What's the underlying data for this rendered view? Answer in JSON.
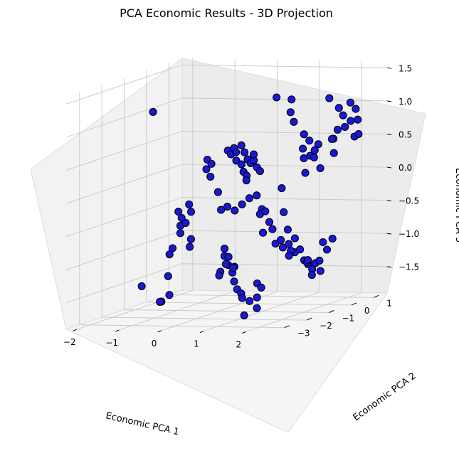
{
  "chart_data": {
    "type": "scatter3d",
    "title": "PCA Economic Results - 3D Projection",
    "xlabel": "Economic PCA 1",
    "ylabel": "Economic PCA 2",
    "zlabel": "Economic PCA 3",
    "xticks": [
      "−2",
      "−1",
      "0",
      "1",
      "2"
    ],
    "yticks": [
      "−3",
      "−2",
      "−1",
      "0",
      "1"
    ],
    "zticks": [
      "−1.5",
      "−1.0",
      "−0.5",
      "0.0",
      "0.5",
      "1.0",
      "1.5"
    ],
    "xlim": [
      -2.25,
      2.6
    ],
    "ylim": [
      -3.6,
      1.6
    ],
    "zlim": [
      -1.9,
      1.6
    ],
    "grid": true,
    "marker_color": "#1a18d8",
    "marker_edge_color": "#000010",
    "points": [
      [
        -2.2,
        0.2,
        0.95
      ],
      [
        -2.1,
        -0.5,
        -1.6
      ],
      [
        -1.95,
        0.1,
        -1.9
      ],
      [
        -1.75,
        -0.35,
        -1.85
      ],
      [
        -1.55,
        -0.3,
        -1.75
      ],
      [
        -1.95,
        0.4,
        -1.55
      ],
      [
        -1.6,
        0.2,
        -0.55
      ],
      [
        -1.55,
        0.25,
        -0.65
      ],
      [
        -1.5,
        0.1,
        -0.75
      ],
      [
        -1.45,
        0.0,
        -0.85
      ],
      [
        -1.35,
        0.05,
        -0.7
      ],
      [
        -1.3,
        0.2,
        -0.55
      ],
      [
        -1.4,
        0.3,
        -0.45
      ],
      [
        -1.25,
        0.1,
        -0.95
      ],
      [
        -1.2,
        -0.05,
        -1.05
      ],
      [
        -1.6,
        -0.2,
        -1.15
      ],
      [
        -1.5,
        -0.25,
        -1.05
      ],
      [
        -1.15,
        0.6,
        0.05
      ],
      [
        -1.1,
        0.55,
        0.2
      ],
      [
        -1.0,
        0.5,
        -0.05
      ],
      [
        -0.95,
        0.45,
        0.15
      ],
      [
        -0.9,
        0.65,
        -0.3
      ],
      [
        -0.75,
        0.5,
        -0.55
      ],
      [
        -0.8,
        0.9,
        0.3
      ],
      [
        -0.7,
        0.85,
        0.25
      ],
      [
        -0.6,
        0.8,
        0.35
      ],
      [
        -0.5,
        0.7,
        0.3
      ],
      [
        -0.4,
        0.75,
        0.4
      ],
      [
        -0.3,
        0.7,
        0.3
      ],
      [
        -0.2,
        0.65,
        0.2
      ],
      [
        -0.1,
        0.6,
        0.15
      ],
      [
        0.0,
        0.55,
        0.2
      ],
      [
        0.1,
        0.5,
        0.1
      ],
      [
        0.2,
        0.45,
        0.05
      ],
      [
        -0.6,
        0.9,
        0.15
      ],
      [
        -0.45,
        0.85,
        0.1
      ],
      [
        -0.35,
        0.75,
        0.0
      ],
      [
        -0.25,
        0.7,
        -0.05
      ],
      [
        0.05,
        0.45,
        0.3
      ],
      [
        -0.15,
        0.5,
        -0.1
      ],
      [
        -0.6,
        0.5,
        -0.5
      ],
      [
        -0.4,
        0.45,
        -0.55
      ],
      [
        -0.2,
        0.4,
        -0.45
      ],
      [
        0.0,
        0.35,
        -0.35
      ],
      [
        0.2,
        0.3,
        -0.3
      ],
      [
        0.35,
        0.25,
        -0.5
      ],
      [
        0.2,
        0.45,
        -0.6
      ],
      [
        0.35,
        0.4,
        -0.55
      ],
      [
        0.5,
        0.3,
        -0.7
      ],
      [
        0.6,
        0.25,
        -0.8
      ],
      [
        0.4,
        0.2,
        -0.85
      ],
      [
        0.75,
        0.1,
        -1.0
      ],
      [
        0.95,
        0.05,
        -1.05
      ],
      [
        0.85,
        0.15,
        -0.95
      ],
      [
        0.3,
        1.0,
        1.1
      ],
      [
        0.55,
        1.2,
        1.05
      ],
      [
        0.5,
        1.25,
        0.85
      ],
      [
        0.55,
        1.3,
        0.7
      ],
      [
        0.95,
        1.0,
        0.55
      ],
      [
        1.05,
        1.05,
        0.45
      ],
      [
        1.15,
        1.1,
        0.3
      ],
      [
        1.0,
        0.9,
        0.2
      ],
      [
        1.2,
        0.8,
        0.25
      ],
      [
        1.0,
        0.85,
        0.35
      ],
      [
        1.55,
        1.0,
        1.1
      ],
      [
        1.75,
        1.05,
        0.95
      ],
      [
        1.9,
        0.95,
        0.85
      ],
      [
        2.1,
        0.9,
        1.05
      ],
      [
        2.2,
        0.95,
        0.95
      ],
      [
        2.0,
        1.1,
        0.75
      ],
      [
        2.3,
        0.85,
        0.8
      ],
      [
        1.85,
        0.8,
        0.65
      ],
      [
        2.05,
        0.75,
        0.7
      ],
      [
        2.25,
        0.8,
        0.55
      ],
      [
        2.4,
        0.7,
        0.6
      ],
      [
        1.7,
        0.9,
        0.5
      ],
      [
        1.5,
        0.6,
        0.45
      ],
      [
        1.4,
        0.6,
        0.25
      ],
      [
        1.35,
        0.3,
        0.05
      ],
      [
        1.6,
        0.5,
        0.1
      ],
      [
        1.9,
        0.45,
        0.55
      ],
      [
        2.0,
        0.35,
        0.35
      ],
      [
        0.95,
        0.0,
        -0.15
      ],
      [
        1.05,
        -0.1,
        -0.5
      ],
      [
        1.2,
        -0.2,
        -0.75
      ],
      [
        1.3,
        -0.35,
        -0.95
      ],
      [
        1.5,
        -0.45,
        -0.85
      ],
      [
        1.55,
        -0.55,
        -1.05
      ],
      [
        1.7,
        -0.6,
        -1.0
      ],
      [
        1.85,
        -0.7,
        -1.15
      ],
      [
        2.0,
        -0.8,
        -1.2
      ],
      [
        2.05,
        -0.95,
        -1.15
      ],
      [
        2.2,
        -1.0,
        -1.25
      ],
      [
        2.3,
        -1.05,
        -1.15
      ],
      [
        2.45,
        -1.15,
        -1.1
      ],
      [
        2.5,
        -1.2,
        -1.25
      ],
      [
        2.35,
        -1.3,
        -1.3
      ],
      [
        2.15,
        -1.1,
        -1.1
      ],
      [
        2.55,
        -1.0,
        -0.95
      ],
      [
        2.4,
        -0.9,
        -0.85
      ],
      [
        2.6,
        -0.85,
        -0.8
      ],
      [
        1.8,
        -1.2,
        -0.95
      ],
      [
        1.65,
        -1.0,
        -1.05
      ],
      [
        0.6,
        -1.9,
        -0.85
      ],
      [
        0.65,
        -2.0,
        -0.95
      ],
      [
        0.8,
        -2.1,
        -0.95
      ],
      [
        0.9,
        -2.3,
        -1.05
      ],
      [
        1.05,
        -2.4,
        -1.15
      ],
      [
        1.15,
        -2.5,
        -1.05
      ],
      [
        1.0,
        -2.6,
        -1.0
      ],
      [
        0.95,
        -2.75,
        -1.1
      ],
      [
        1.25,
        -2.7,
        -1.25
      ],
      [
        1.4,
        -2.85,
        -1.35
      ],
      [
        1.55,
        -2.95,
        -1.4
      ],
      [
        1.65,
        -3.1,
        -1.45
      ],
      [
        1.8,
        -3.05,
        -1.5
      ],
      [
        1.95,
        -3.0,
        -1.45
      ],
      [
        2.0,
        -3.1,
        -1.6
      ],
      [
        1.75,
        -3.2,
        -1.7
      ],
      [
        0.75,
        -1.8,
        -1.15
      ],
      [
        0.5,
        -1.95,
        -1.25
      ],
      [
        1.9,
        -2.9,
        -1.25
      ],
      [
        2.05,
        -3.0,
        -1.3
      ]
    ]
  }
}
